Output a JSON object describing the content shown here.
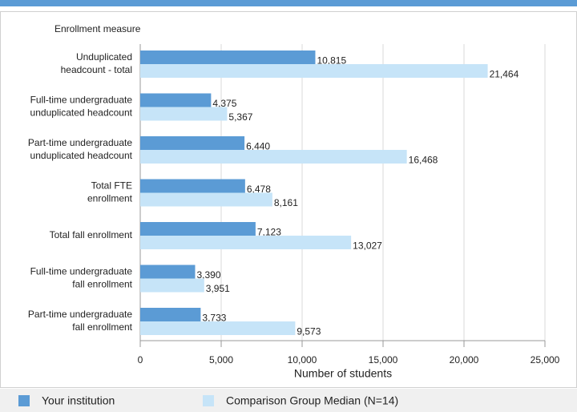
{
  "chart_data": {
    "type": "hbar",
    "y_axis_title": "Enrollment measure",
    "x_axis_title": "Number of students",
    "categories": [
      [
        "Unduplicated",
        "headcount - total"
      ],
      [
        "Full-time undergraduate",
        "unduplicated headcount"
      ],
      [
        "Part-time undergraduate",
        "unduplicated headcount"
      ],
      [
        "Total FTE",
        "enrollment"
      ],
      [
        "Total fall enrollment"
      ],
      [
        "Full-time undergraduate",
        "fall enrollment"
      ],
      [
        "Part-time undergraduate",
        "fall enrollment"
      ]
    ],
    "series": [
      {
        "name": "Your institution",
        "color": "#5b9bd5",
        "values": [
          10815,
          4375,
          6440,
          6478,
          7123,
          3390,
          3733
        ],
        "value_labels": [
          "10,815",
          "4,375",
          "6,440",
          "6,478",
          "7,123",
          "3,390",
          "3,733"
        ]
      },
      {
        "name": "Comparison Group Median (N=14)",
        "color": "#c6e4f8",
        "values": [
          21464,
          5367,
          16468,
          8161,
          13027,
          3951,
          9573
        ],
        "value_labels": [
          "21,464",
          "5,367",
          "16,468",
          "8,161",
          "13,027",
          "3,951",
          "9,573"
        ]
      }
    ],
    "xlim": [
      0,
      25000
    ],
    "xticks": [
      0,
      {
        "value": 5000,
        "label": "5,000"
      },
      {
        "value": 10000,
        "label": "10,000"
      },
      {
        "value": 15000,
        "label": "15,000"
      },
      {
        "value": 20000,
        "label": "20,000"
      },
      {
        "value": 25000,
        "label": "25,000"
      }
    ],
    "grid": true
  }
}
